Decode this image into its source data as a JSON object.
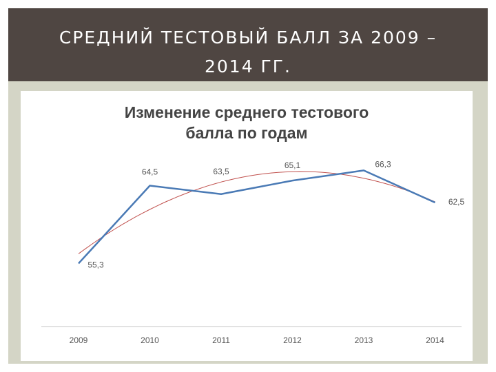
{
  "slide": {
    "title_line1": "СРЕДНИЙ ТЕСТОВЫЙ БАЛЛ ЗА 2009 –",
    "title_line2": "2014 ГГ."
  },
  "chart_data": {
    "type": "line",
    "title_line1": "Изменение среднего тестового",
    "title_line2": "балла по годам",
    "x": [
      "2009",
      "2010",
      "2011",
      "2012",
      "2013",
      "2014"
    ],
    "series": [
      {
        "values": [
          55.3,
          64.5,
          63.5,
          65.1,
          66.3,
          62.5
        ],
        "labels": [
          "55,3",
          "64,5",
          "63,5",
          "65,1",
          "66,3",
          "62,5"
        ],
        "color": "#4a7ab5"
      }
    ],
    "trendline": {
      "type": "polynomial",
      "color": "#c0504d"
    },
    "ylim": [
      48,
      70
    ],
    "grid": false,
    "legend": "none"
  }
}
